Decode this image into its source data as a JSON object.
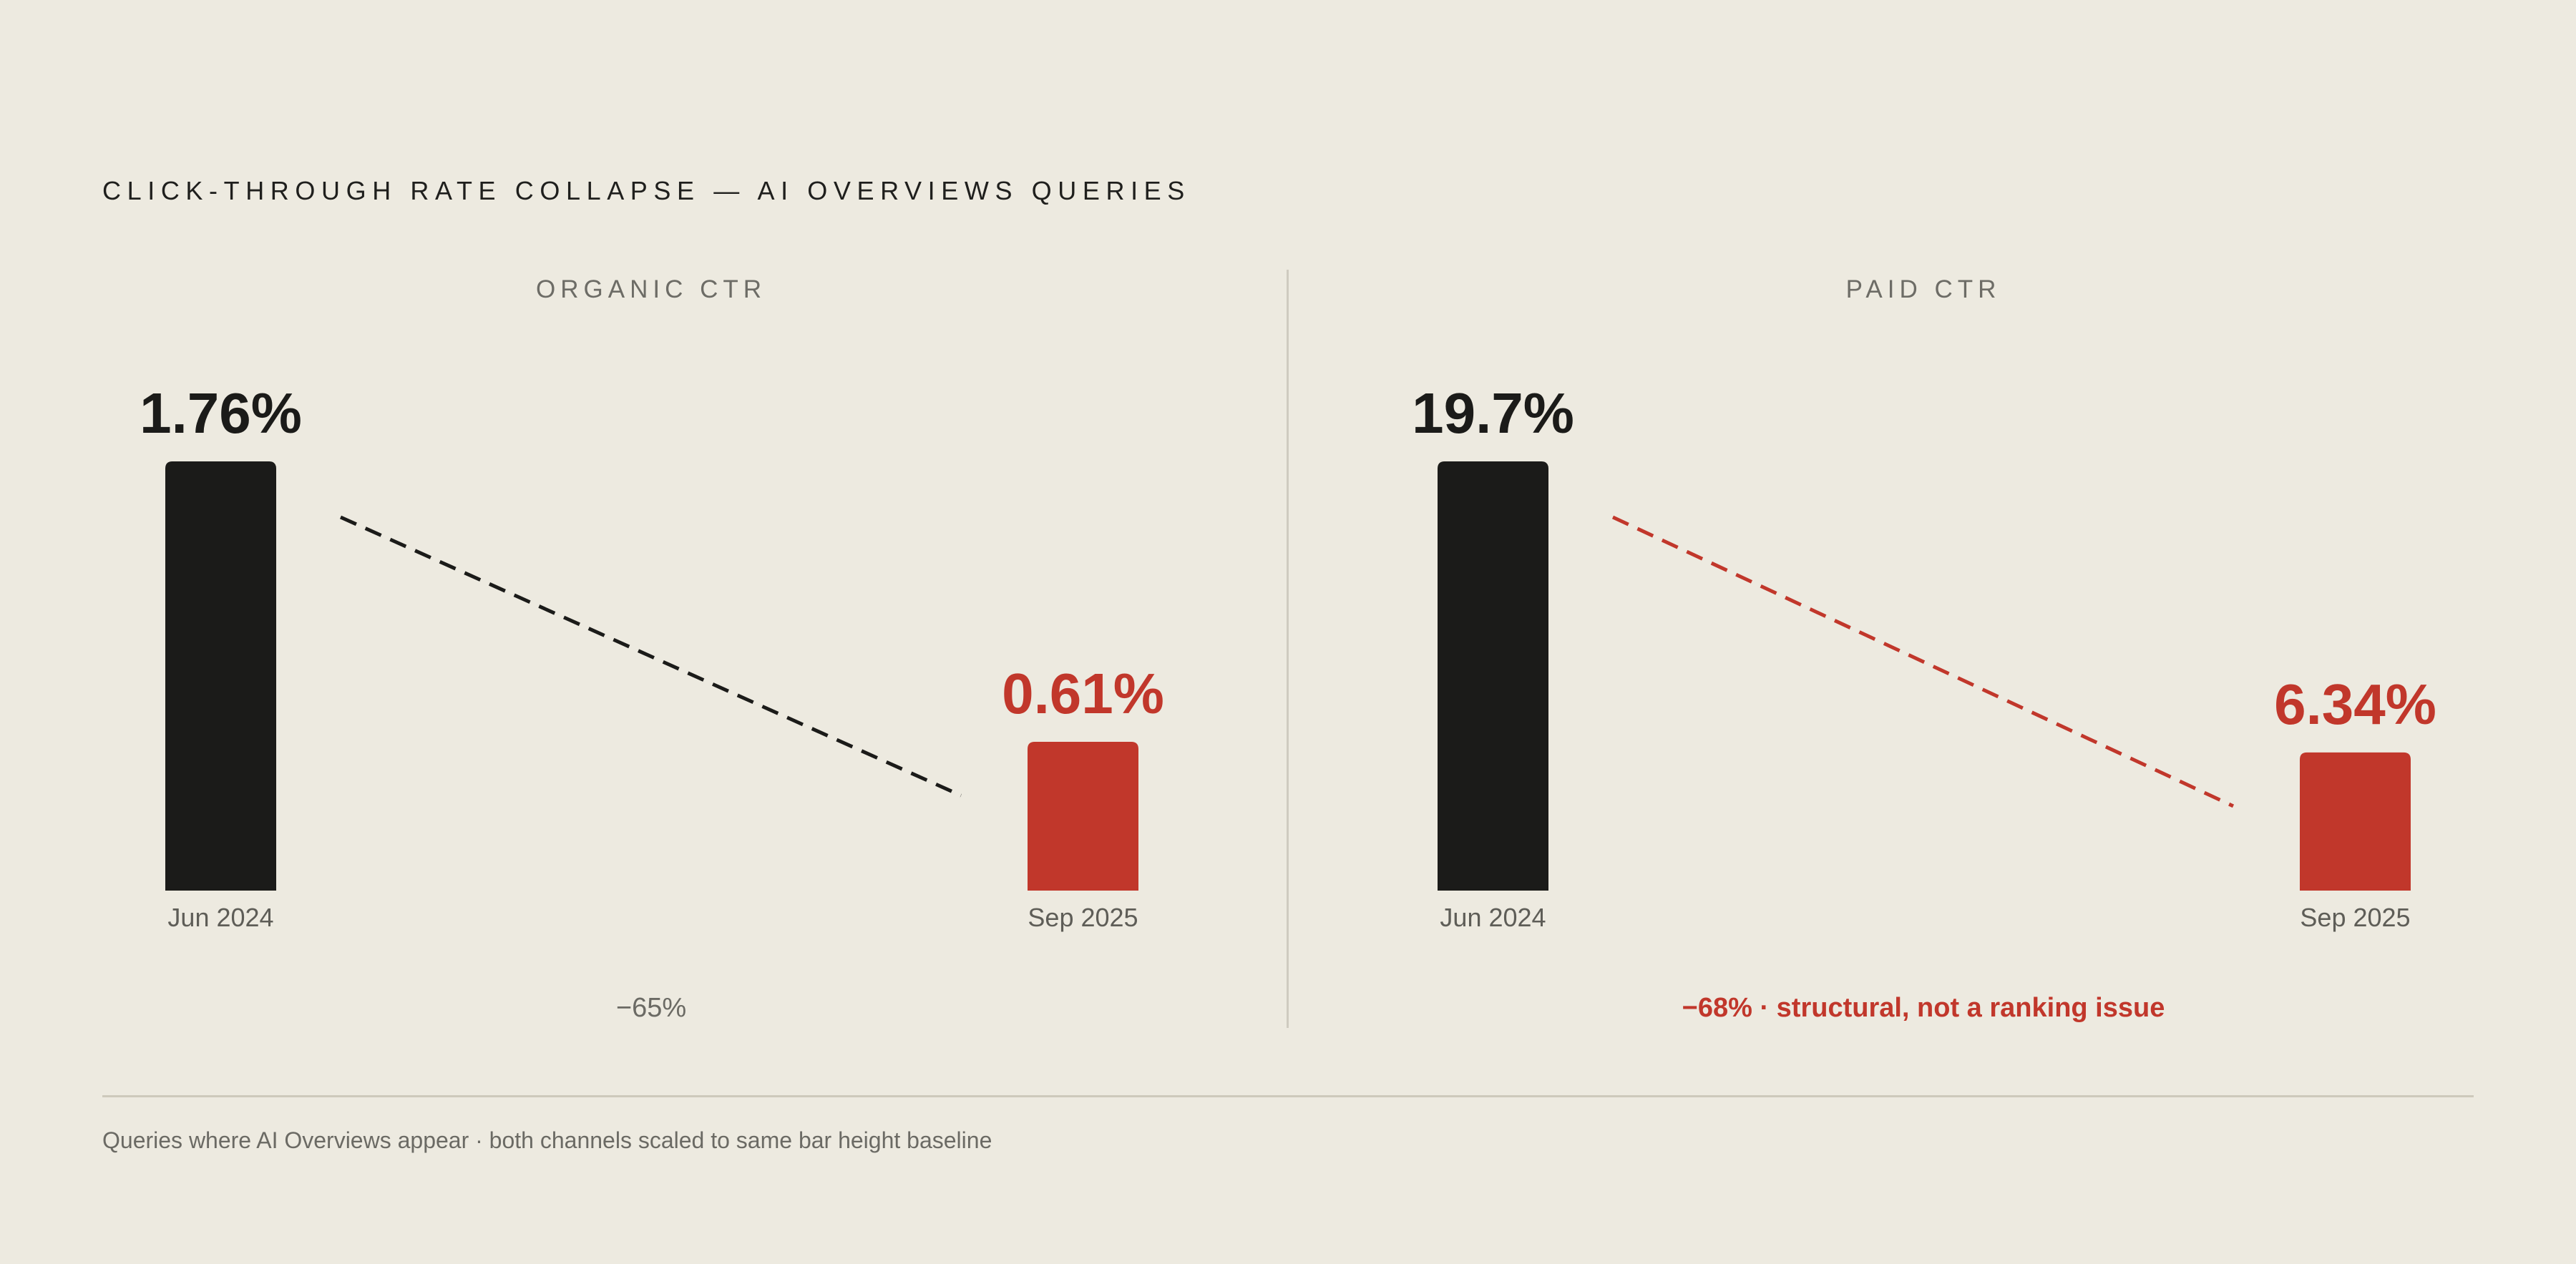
{
  "title": "CLICK-THROUGH RATE COLLAPSE — AI OVERVIEWS QUERIES",
  "footnote": "Queries where AI Overviews appear · both channels scaled to same bar height baseline",
  "colors": {
    "background": "#edeae0",
    "before_bar": "#1b1b19",
    "after_bar": "#c1372b",
    "muted_text": "#6b6a64",
    "rule": "#cdc9bc"
  },
  "chart_data": [
    {
      "type": "bar",
      "title": "ORGANIC CTR",
      "categories": [
        "Jun 2024",
        "Sep 2025"
      ],
      "values": [
        1.76,
        0.61
      ],
      "value_labels": [
        "1.76%",
        "0.61%"
      ],
      "unit": "%",
      "ylim": [
        0,
        1.76
      ],
      "connector": "dashed",
      "connector_color": "#1b1b19",
      "change_label": "−65%",
      "change_emphasis": false
    },
    {
      "type": "bar",
      "title": "PAID CTR",
      "categories": [
        "Jun 2024",
        "Sep 2025"
      ],
      "values": [
        19.7,
        6.34
      ],
      "value_labels": [
        "19.7%",
        "6.34%"
      ],
      "unit": "%",
      "ylim": [
        0,
        19.7
      ],
      "connector": "dashed",
      "connector_color": "#c1372b",
      "change_label": "−68% · structural, not a ranking issue",
      "change_emphasis": true
    }
  ]
}
